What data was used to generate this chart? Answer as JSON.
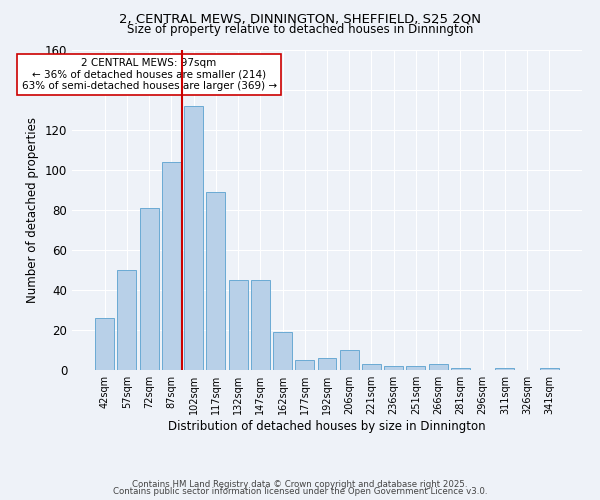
{
  "title1": "2, CENTRAL MEWS, DINNINGTON, SHEFFIELD, S25 2QN",
  "title2": "Size of property relative to detached houses in Dinnington",
  "xlabel": "Distribution of detached houses by size in Dinnington",
  "ylabel": "Number of detached properties",
  "bar_labels": [
    "42sqm",
    "57sqm",
    "72sqm",
    "87sqm",
    "102sqm",
    "117sqm",
    "132sqm",
    "147sqm",
    "162sqm",
    "177sqm",
    "192sqm",
    "206sqm",
    "221sqm",
    "236sqm",
    "251sqm",
    "266sqm",
    "281sqm",
    "296sqm",
    "311sqm",
    "326sqm",
    "341sqm"
  ],
  "bar_values": [
    26,
    50,
    81,
    104,
    132,
    89,
    45,
    45,
    19,
    5,
    6,
    10,
    3,
    2,
    2,
    3,
    1,
    0,
    1,
    0,
    1
  ],
  "bar_color": "#b8d0e8",
  "bar_edge_color": "#6aaad4",
  "vline_color": "#cc0000",
  "annotation_text": "2 CENTRAL MEWS: 97sqm\n← 36% of detached houses are smaller (214)\n63% of semi-detached houses are larger (369) →",
  "annotation_box_color": "#ffffff",
  "annotation_box_edge": "#cc0000",
  "ylim": [
    0,
    160
  ],
  "yticks": [
    0,
    20,
    40,
    60,
    80,
    100,
    120,
    140,
    160
  ],
  "footer1": "Contains HM Land Registry data © Crown copyright and database right 2025.",
  "footer2": "Contains public sector information licensed under the Open Government Licence v3.0.",
  "bg_color": "#eef2f8",
  "plot_bg_color": "#eef2f8"
}
